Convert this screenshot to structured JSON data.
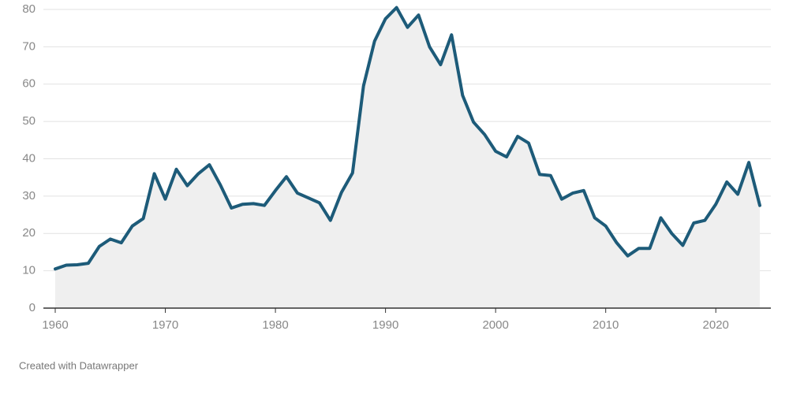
{
  "chart_data": {
    "type": "area-line",
    "x": [
      1960,
      1961,
      1962,
      1963,
      1964,
      1965,
      1966,
      1967,
      1968,
      1969,
      1970,
      1971,
      1972,
      1973,
      1974,
      1975,
      1976,
      1977,
      1978,
      1979,
      1980,
      1981,
      1982,
      1983,
      1984,
      1985,
      1986,
      1987,
      1988,
      1989,
      1990,
      1991,
      1992,
      1993,
      1994,
      1995,
      1996,
      1997,
      1998,
      1999,
      2000,
      2001,
      2002,
      2003,
      2004,
      2005,
      2006,
      2007,
      2008,
      2009,
      2010,
      2011,
      2012,
      2013,
      2014,
      2015,
      2016,
      2017,
      2018,
      2019,
      2020,
      2021,
      2022,
      2023,
      2024
    ],
    "values": [
      10.5,
      11.5,
      11.6,
      12,
      16.5,
      18.5,
      17.5,
      22,
      24,
      36,
      29.2,
      37.2,
      32.8,
      36,
      38.4,
      33,
      26.8,
      27.8,
      28,
      27.5,
      31.5,
      35.2,
      30.8,
      29.5,
      28.2,
      23.5,
      31,
      36.2,
      59.5,
      71.5,
      77.5,
      80.5,
      75.2,
      78.5,
      70,
      65.2,
      73.2,
      57,
      49.8,
      46.5,
      42,
      40.5,
      46,
      44.2,
      35.8,
      35.5,
      29.2,
      30.8,
      31.5,
      24.2,
      22,
      17.5,
      14,
      16,
      16,
      24.2,
      20,
      16.8,
      22.8,
      23.5,
      27.8,
      33.8,
      30.5,
      39,
      27.5
    ],
    "color": "#1d5b79",
    "fill_color": "#efefef",
    "xlim": [
      1960,
      2025
    ],
    "xticks": [
      1960,
      1970,
      1980,
      1990,
      2000,
      2010,
      2020
    ],
    "ylim": [
      0,
      80
    ],
    "yticks": [
      0,
      10,
      20,
      30,
      40,
      50,
      60,
      70,
      80
    ],
    "grid": true,
    "footer": "Created with Datawrapper"
  }
}
